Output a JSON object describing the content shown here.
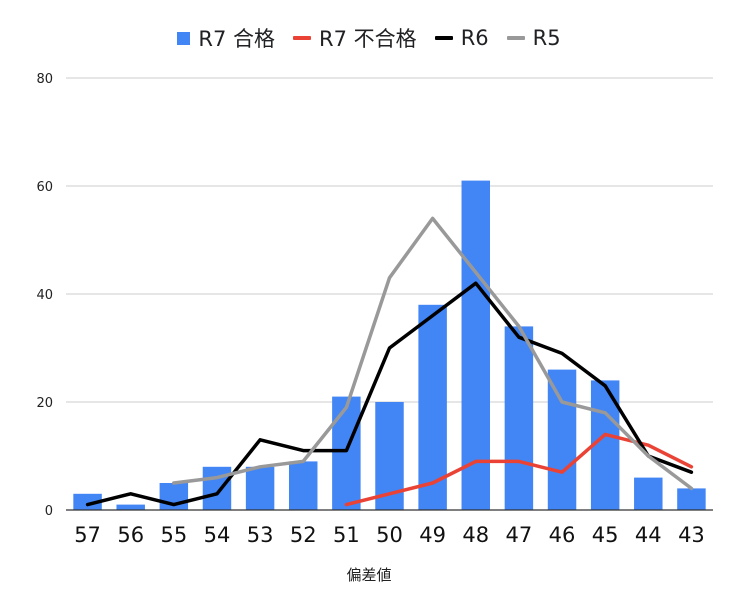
{
  "chart_data": {
    "type": "bar",
    "xlabel": "偏差値",
    "ylabel": "",
    "ylim": [
      0,
      80
    ],
    "yticks": [
      0,
      20,
      40,
      60,
      80
    ],
    "grid": true,
    "legend_position": "top",
    "categories": [
      "57",
      "56",
      "55",
      "54",
      "53",
      "52",
      "51",
      "50",
      "49",
      "48",
      "47",
      "46",
      "45",
      "44",
      "43"
    ],
    "series": [
      {
        "name": "R7 合格",
        "kind": "bar",
        "color": "#4285F4",
        "values": [
          3,
          1,
          5,
          8,
          8,
          9,
          21,
          20,
          38,
          61,
          34,
          26,
          24,
          6,
          4
        ]
      },
      {
        "name": "R7 不合格",
        "kind": "line",
        "color": "#EA4335",
        "values": [
          null,
          null,
          null,
          null,
          null,
          null,
          1,
          3,
          5,
          9,
          9,
          7,
          14,
          12,
          8
        ]
      },
      {
        "name": "R6",
        "kind": "line",
        "color": "#000000",
        "values": [
          1,
          3,
          1,
          3,
          13,
          11,
          11,
          30,
          36,
          42,
          32,
          29,
          23,
          10,
          7
        ]
      },
      {
        "name": "R5",
        "kind": "line",
        "color": "#999999",
        "values": [
          null,
          null,
          5,
          6,
          8,
          9,
          19,
          43,
          54,
          44,
          34,
          20,
          18,
          10,
          4
        ]
      }
    ]
  }
}
